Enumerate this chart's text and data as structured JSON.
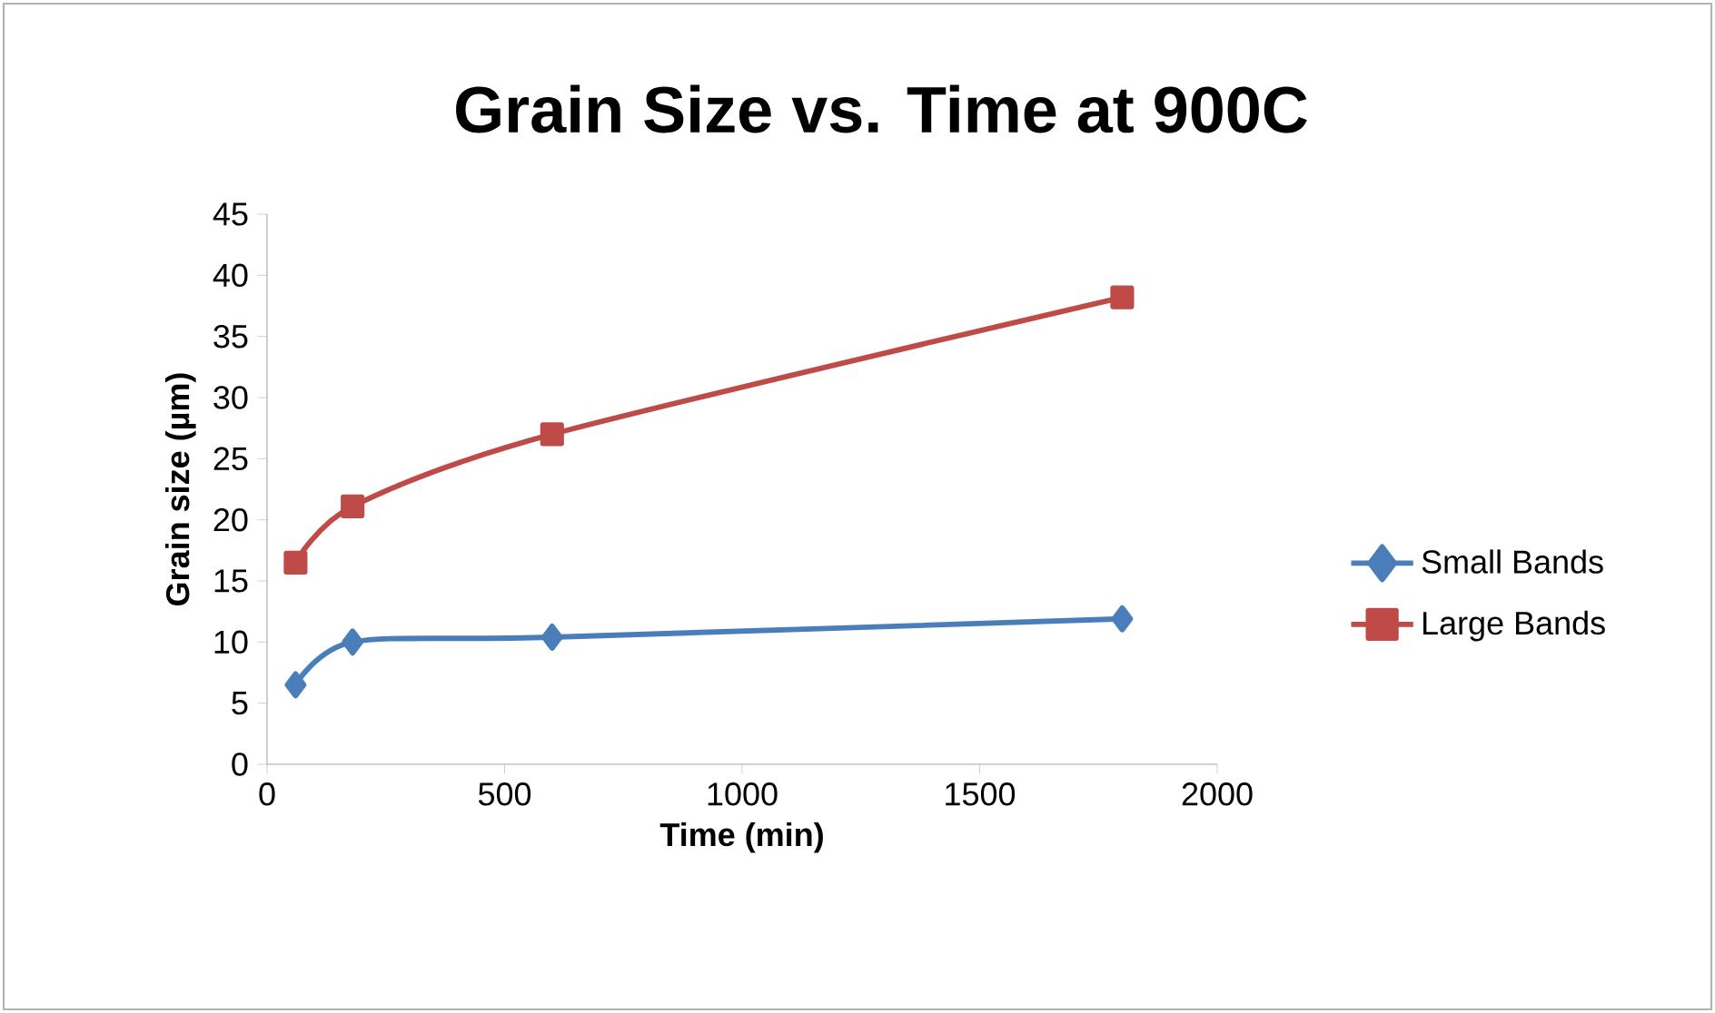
{
  "chart_data": {
    "type": "line",
    "title": "Grain Size vs. Time at 900C",
    "xlabel": "Time (min)",
    "ylabel": "Grain size (µm)",
    "xlim": [
      0,
      2000
    ],
    "xticks": [
      0,
      500,
      1000,
      1500,
      2000
    ],
    "ylim": [
      0,
      45
    ],
    "yticks": [
      0,
      5,
      10,
      15,
      20,
      25,
      30,
      35,
      40,
      45
    ],
    "x": [
      60,
      180,
      600,
      1800
    ],
    "legend": "right",
    "line_style": "solid",
    "series": [
      {
        "name": "Small Bands",
        "color": "#4a7ebb",
        "marker": "diamond",
        "values": [
          6.5,
          10.0,
          10.4,
          11.9
        ]
      },
      {
        "name": "Large Bands",
        "color": "#be4b48",
        "marker": "square",
        "values": [
          16.5,
          21.1,
          27.0,
          38.2
        ]
      }
    ]
  }
}
